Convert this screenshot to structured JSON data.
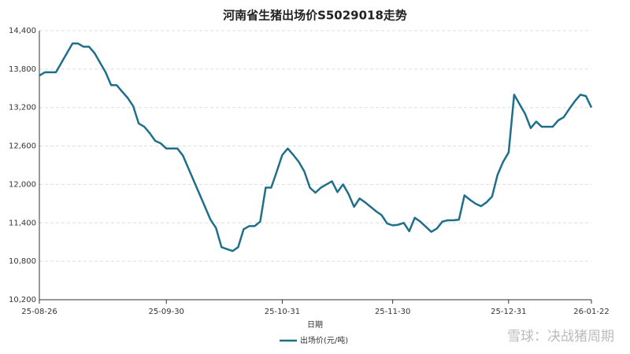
{
  "chart_data": {
    "type": "line",
    "title": "河南省生猪出场价S5029018走势",
    "x_label": "日期",
    "watermark": "雪球：决战猪周期",
    "categories": [
      "25-08-26",
      null,
      null,
      null,
      null,
      null,
      null,
      null,
      null,
      null,
      null,
      null,
      null,
      null,
      null,
      null,
      null,
      null,
      null,
      null,
      null,
      null,
      null,
      "25-09-30",
      null,
      null,
      null,
      null,
      null,
      null,
      null,
      null,
      null,
      null,
      null,
      null,
      null,
      null,
      null,
      null,
      null,
      null,
      null,
      null,
      "25-10-31",
      null,
      null,
      null,
      null,
      null,
      null,
      null,
      null,
      null,
      null,
      null,
      null,
      null,
      null,
      null,
      null,
      null,
      null,
      null,
      "25-11-30",
      null,
      null,
      null,
      null,
      null,
      null,
      null,
      null,
      null,
      null,
      null,
      null,
      null,
      null,
      null,
      null,
      null,
      null,
      null,
      null,
      "25-12-31",
      null,
      null,
      null,
      null,
      null,
      null,
      null,
      null,
      null,
      null,
      null,
      null,
      null,
      null,
      "26-01-22"
    ],
    "series": [
      {
        "name": "出场价(元/吨)",
        "color": "#1f6f8b",
        "values": [
          13700,
          13750,
          13750,
          13750,
          13900,
          14050,
          14200,
          14200,
          14150,
          14150,
          14050,
          13900,
          13750,
          13550,
          13550,
          13450,
          13350,
          13220,
          12950,
          12900,
          12800,
          12680,
          12640,
          12560,
          12560,
          12560,
          12450,
          12250,
          12050,
          11850,
          11650,
          11450,
          11320,
          11020,
          10990,
          10960,
          11020,
          11300,
          11350,
          11350,
          11420,
          11950,
          11950,
          12200,
          12460,
          12560,
          12460,
          12350,
          12200,
          11950,
          11870,
          11950,
          12000,
          12050,
          11880,
          12000,
          11850,
          11650,
          11780,
          11720,
          11650,
          11580,
          11520,
          11390,
          11360,
          11370,
          11400,
          11270,
          11480,
          11420,
          11340,
          11260,
          11310,
          11420,
          11440,
          11440,
          11450,
          11830,
          11760,
          11700,
          11660,
          11720,
          11810,
          12150,
          12350,
          12500,
          13400,
          13250,
          13100,
          12880,
          12980,
          12900,
          12900,
          12900,
          13000,
          13050,
          13180,
          13300,
          13400,
          13380,
          13200
        ]
      }
    ],
    "ylim": [
      10200,
      14400
    ],
    "yticks": [
      {
        "value": 10200,
        "label": "10,200"
      },
      {
        "value": 10800,
        "label": "10,800"
      },
      {
        "value": 11400,
        "label": "11,400"
      },
      {
        "value": 12000,
        "label": "12,000"
      },
      {
        "value": 12600,
        "label": "12,600"
      },
      {
        "value": 13200,
        "label": "13,200"
      },
      {
        "value": 13800,
        "label": "13,800"
      },
      {
        "value": 14400,
        "label": "14,400"
      }
    ],
    "grid": true
  }
}
